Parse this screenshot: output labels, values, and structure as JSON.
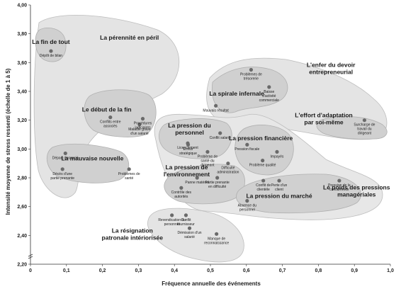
{
  "chart_data": {
    "type": "scatter",
    "xlabel": "Fréquence annuelle des événements",
    "ylabel": "Intensité moyenne de stress ressenti (échelle de 1 à 5)",
    "xlim": [
      0,
      1.0
    ],
    "ylim": [
      2.2,
      4.0
    ],
    "x_ticks": [
      "0",
      "0,1",
      "0,2",
      "0,3",
      "0,4",
      "0,5",
      "0,6",
      "0,7",
      "0,8",
      "0,9",
      "1,0"
    ],
    "y_ticks": [
      "2,20",
      "2,40",
      "2,60",
      "2,80",
      "3,00",
      "3,20",
      "3,40",
      "3,60",
      "3,80",
      "4,00"
    ],
    "points": [
      {
        "label": "Dépôt de bilan",
        "x": 0.057,
        "y": 3.68
      },
      {
        "label": "Procédures judiciaires",
        "x": 0.312,
        "y": 3.21
      },
      {
        "label": "Conflits entre associés",
        "x": 0.222,
        "y": 3.22
      },
      {
        "label": "Maladie grave d'un salarié",
        "x": 0.303,
        "y": 3.17
      },
      {
        "label": "Départ d'associé",
        "x": 0.097,
        "y": 2.97
      },
      {
        "label": "Décès d'une partie prenante",
        "x": 0.089,
        "y": 2.86
      },
      {
        "label": "Problèmes de santé",
        "x": 0.274,
        "y": 2.86
      },
      {
        "label": "Problèmes de trésorerie",
        "x": 0.613,
        "y": 3.55
      },
      {
        "label": "Baisse d'activité commerciale",
        "x": 0.663,
        "y": 3.43
      },
      {
        "label": "Mauvais résultat",
        "x": 0.515,
        "y": 3.3
      },
      {
        "label": "Surcharge de travail du dirigeant",
        "x": 0.928,
        "y": 3.2
      },
      {
        "label": "Conflit salarié",
        "x": 0.527,
        "y": 3.11
      },
      {
        "label": "Licenciement",
        "x": 0.437,
        "y": 3.04
      },
      {
        "label": "Problème de santé du dirigeant",
        "x": 0.492,
        "y": 2.98
      },
      {
        "label": "Erreur stratégique",
        "x": 0.438,
        "y": 3.03
      },
      {
        "label": "Pression fiscale",
        "x": 0.602,
        "y": 3.03
      },
      {
        "label": "Impayés",
        "x": 0.685,
        "y": 2.98
      },
      {
        "label": "Problème qualité",
        "x": 0.645,
        "y": 2.92
      },
      {
        "label": "Difficulté administration",
        "x": 0.549,
        "y": 2.9
      },
      {
        "label": "Panne matériel",
        "x": 0.463,
        "y": 2.8
      },
      {
        "label": "Partie prenante en difficulté",
        "x": 0.519,
        "y": 2.8
      },
      {
        "label": "Contrôle des autorités",
        "x": 0.419,
        "y": 2.73
      },
      {
        "label": "Conflit de clientèle",
        "x": 0.647,
        "y": 2.78
      },
      {
        "label": "Perte d'un client",
        "x": 0.691,
        "y": 2.78
      },
      {
        "label": "Pression de la concurrence",
        "x": 0.858,
        "y": 2.78
      },
      {
        "label": "Absence du personnel",
        "x": 0.602,
        "y": 2.64
      },
      {
        "label": "Revendication du personnel",
        "x": 0.393,
        "y": 2.54
      },
      {
        "label": "Conflit fournisseur",
        "x": 0.432,
        "y": 2.54
      },
      {
        "label": "Démission d'un salarié",
        "x": 0.442,
        "y": 2.45
      },
      {
        "label": "Manque de reconnaissance",
        "x": 0.517,
        "y": 2.41
      }
    ],
    "group_labels": [
      {
        "text": "La fin de tout",
        "x": 0.057,
        "y": 3.73
      },
      {
        "text": "La pérennité en péril",
        "x": 0.275,
        "y": 3.76
      },
      {
        "text": "Le début de la fin",
        "x": 0.212,
        "y": 3.26
      },
      {
        "text": "La mauvaise nouvelle",
        "x": 0.172,
        "y": 2.92
      },
      {
        "text": "L'enfer du devoir entrepreneurial",
        "x": 0.835,
        "y": 3.57
      },
      {
        "text": "La spirale infernale",
        "x": 0.573,
        "y": 3.37
      },
      {
        "text": "L'effort d'adaptation par soi-même",
        "x": 0.815,
        "y": 3.22
      },
      {
        "text": "La pression du personnel",
        "x": 0.442,
        "y": 3.15
      },
      {
        "text": "La pression financière",
        "x": 0.64,
        "y": 3.06
      },
      {
        "text": "La pression de l'environnement",
        "x": 0.434,
        "y": 2.86
      },
      {
        "text": "La pression du marché",
        "x": 0.691,
        "y": 2.66
      },
      {
        "text": "Le poids des pressions managériales",
        "x": 0.906,
        "y": 2.72
      },
      {
        "text": "La résignation patronale intériorisée",
        "x": 0.283,
        "y": 2.42
      }
    ]
  }
}
